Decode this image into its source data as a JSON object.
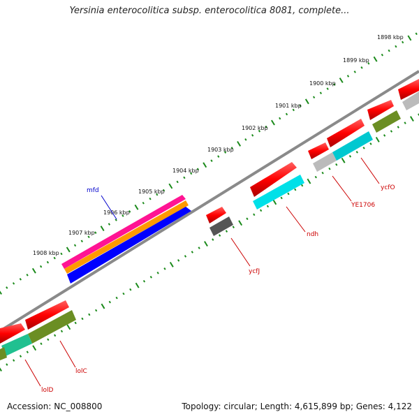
{
  "title": "Yersinia enterocolitica subsp. enterocolitica 8081, complete...",
  "footer": {
    "accession": "Accession: NC_008800",
    "topology": "Topology: circular; Length: 4,615,899 bp; Genes: 4,122"
  },
  "scale_labels": [
    "1898 kbp",
    "1899 kbp",
    "1900 kbp",
    "1901 kbp",
    "1902 kbp",
    "1903 kbp",
    "1904 kbp",
    "1905 kbp",
    "1906 kbp",
    "1907 kbp",
    "1908 kbp"
  ],
  "gene_labels": [
    {
      "name": "mfd",
      "color": "#0000cc"
    },
    {
      "name": "ycfJ",
      "color": "#cc0000"
    },
    {
      "name": "ndh",
      "color": "#cc0000"
    },
    {
      "name": "YE1706",
      "color": "#cc0000"
    },
    {
      "name": "ycfO",
      "color": "#cc0000"
    },
    {
      "name": "lolC",
      "color": "#cc0000"
    },
    {
      "name": "lolD",
      "color": "#cc0000"
    }
  ],
  "colors": {
    "backbone": "#8a8a8a",
    "ticks": "#1a8a1a",
    "red": "#ff0000",
    "cyan": "#00e0e8",
    "olive": "#6b8e23",
    "gray": "#bbbbbb",
    "dark_gray": "#555555",
    "blue": "#0000ff",
    "orange": "#ff9900",
    "magenta": "#ff1493",
    "teal": "#20c090"
  }
}
